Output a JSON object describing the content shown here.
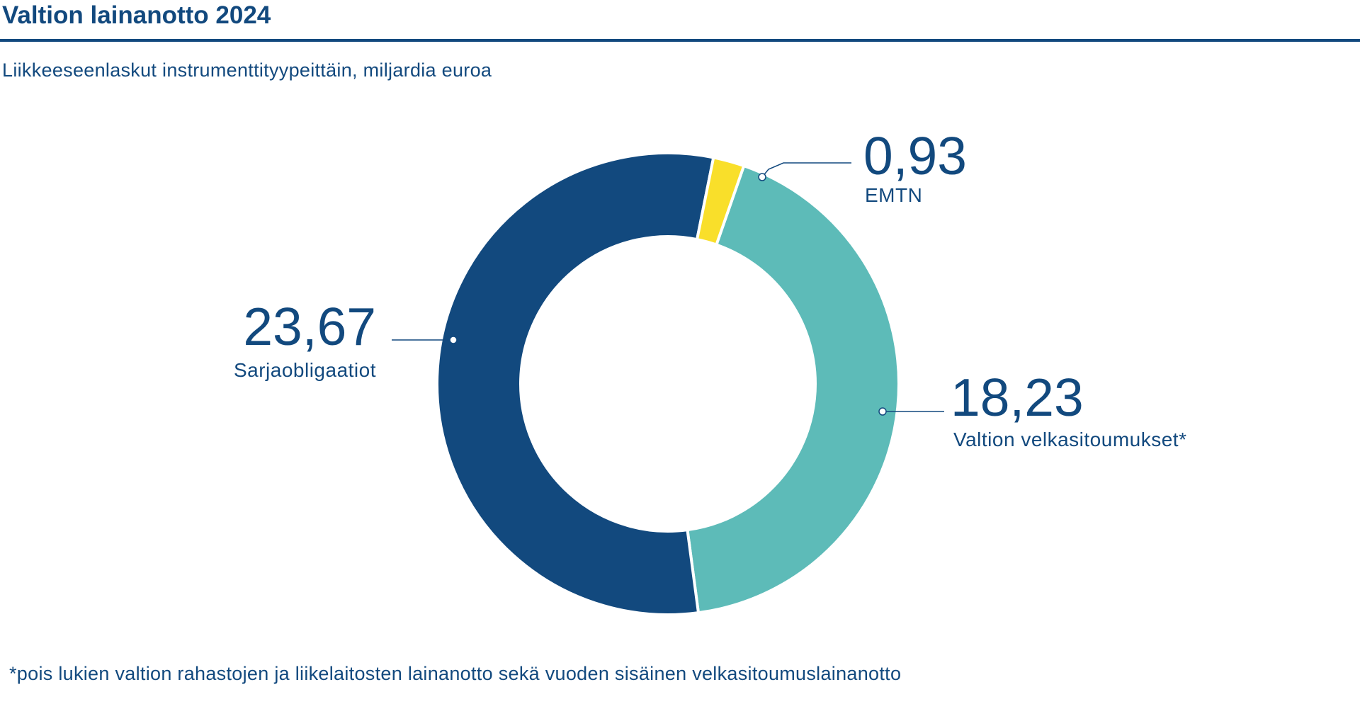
{
  "header": {
    "title": "Valtion lainanotto 2024",
    "subtitle": "Liikkeeseenlaskut instrumenttityypeittäin, miljardia euroa"
  },
  "footnote": "*pois lukien valtion rahastojen ja liikelaitosten lainanotto sekä vuoden sisäinen velkasitoumuslainanotto",
  "chart_data": {
    "type": "pie",
    "donut": true,
    "title": "Valtion lainanotto 2024",
    "subtitle": "Liikkeeseenlaskut instrumenttityypeittäin, miljardia euroa",
    "slices": [
      {
        "label": "Valtion velkasitoumukset*",
        "value": 18.23,
        "value_label": "18,23",
        "color": "#5dbbb8"
      },
      {
        "label": "Sarjaobligaatiot",
        "value": 23.67,
        "value_label": "23,67",
        "color": "#12497e"
      },
      {
        "label": "EMTN",
        "value": 0.93,
        "value_label": "0,93",
        "color": "#f9df2a"
      }
    ],
    "unit": "miljardia euroa"
  }
}
